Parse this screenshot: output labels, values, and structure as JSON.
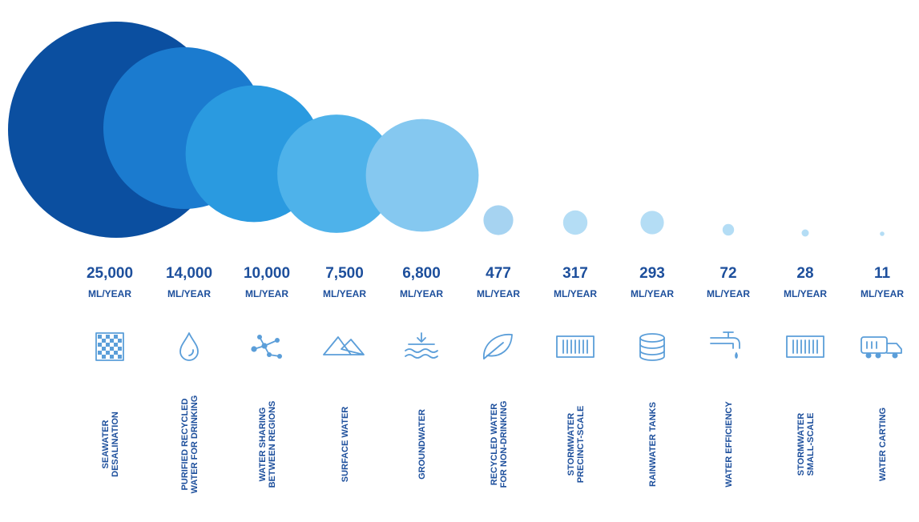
{
  "chart_data": {
    "type": "bubble",
    "unit": "ML/YEAR",
    "categories": [
      {
        "label": [
          "SEAWATER",
          "DESALINATION"
        ],
        "value": 25000,
        "value_label": "25,000",
        "icon": "desalination-grid-icon",
        "color": "#0b4fa0"
      },
      {
        "label": [
          "PURIFIED RECYCLED",
          "WATER FOR DRINKING"
        ],
        "value": 14000,
        "value_label": "14,000",
        "icon": "water-drop-icon",
        "color": "#1b7bcf"
      },
      {
        "label": [
          "WATER SHARING",
          "BETWEEN REGIONS"
        ],
        "value": 10000,
        "value_label": "10,000",
        "icon": "network-nodes-icon",
        "color": "#2a9ae0"
      },
      {
        "label": [
          "SURFACE WATER"
        ],
        "value": 7500,
        "value_label": "7,500",
        "icon": "mountains-icon",
        "color": "#4eb2ea"
      },
      {
        "label": [
          "GROUNDWATER"
        ],
        "value": 6800,
        "value_label": "6,800",
        "icon": "groundwater-waves-icon",
        "color": "#85c8f0"
      },
      {
        "label": [
          "RECYCLED WATER",
          "FOR NON-DRINKING"
        ],
        "value": 477,
        "value_label": "477",
        "icon": "leaf-icon",
        "color": "#a6d3f1"
      },
      {
        "label": [
          "STORMWATER",
          "PRECINCT-SCALE"
        ],
        "value": 317,
        "value_label": "317",
        "icon": "storm-drain-grate-icon",
        "color": "#b4ddf5"
      },
      {
        "label": [
          "RAINWATER TANKS"
        ],
        "value": 293,
        "value_label": "293",
        "icon": "tank-icon",
        "color": "#b4ddf5"
      },
      {
        "label": [
          "WATER EFFICIENCY"
        ],
        "value": 72,
        "value_label": "72",
        "icon": "tap-icon",
        "color": "#b4ddf5"
      },
      {
        "label": [
          "STORMWATER",
          "SMALL-SCALE"
        ],
        "value": 28,
        "value_label": "28",
        "icon": "storm-drain-grate-icon",
        "color": "#b4ddf5"
      },
      {
        "label": [
          "WATER CARTING"
        ],
        "value": 11,
        "value_label": "11",
        "icon": "water-truck-icon",
        "color": "#b4ddf5"
      }
    ]
  }
}
